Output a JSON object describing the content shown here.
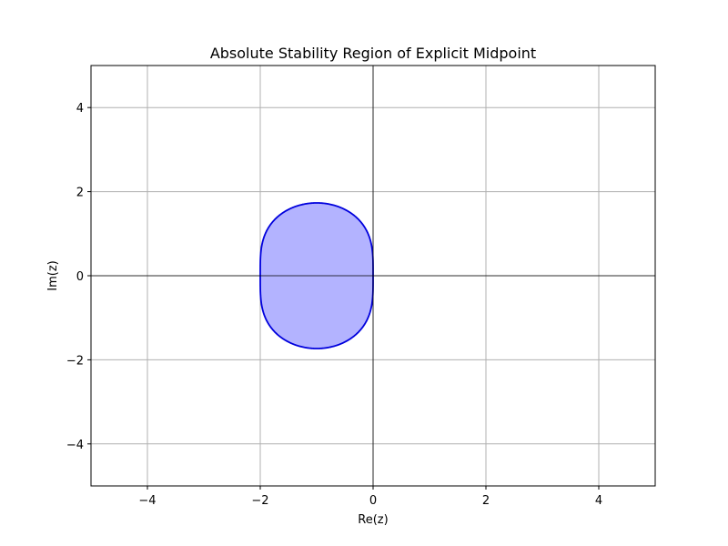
{
  "chart_data": {
    "type": "area",
    "title": "Absolute Stability Region of Explicit Midpoint",
    "xlabel": "Re(z)",
    "ylabel": "Im(z)",
    "xlim": [
      -5,
      5
    ],
    "ylim": [
      -5,
      5
    ],
    "x_ticks": [
      -4,
      -2,
      0,
      2,
      4
    ],
    "y_ticks": [
      -4,
      -2,
      0,
      2,
      4
    ],
    "x_tick_labels": [
      "−4",
      "−2",
      "0",
      "2",
      "4"
    ],
    "y_tick_labels": [
      "−4",
      "−2",
      "0",
      "2",
      "4"
    ],
    "grid": true,
    "zero_lines": true,
    "region": {
      "description_formula": "|1 + z + z^2/2| <= 1",
      "fill_color": "#b3b3ff",
      "edge_color": "#0000dd"
    }
  }
}
